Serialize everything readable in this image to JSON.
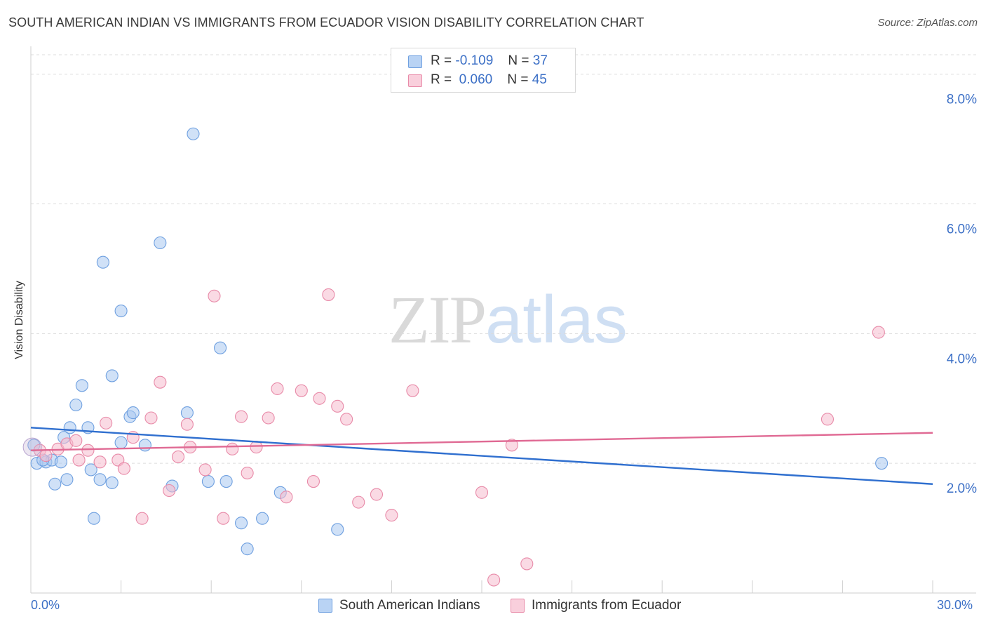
{
  "header": {
    "title": "SOUTH AMERICAN INDIAN VS IMMIGRANTS FROM ECUADOR VISION DISABILITY CORRELATION CHART",
    "source": "Source: ZipAtlas.com"
  },
  "watermark": {
    "part1": "ZIP",
    "part2": "atlas"
  },
  "legend": {
    "rows": [
      {
        "r_label": "R =",
        "r_value": "-0.109",
        "n_label": "N =",
        "n_value": "37",
        "color": "#a9c8f0"
      },
      {
        "r_label": "R =",
        "r_value": "0.060",
        "n_label": "N =",
        "n_value": "45",
        "color": "#f6bccd"
      }
    ]
  },
  "bottom_legend": [
    {
      "label": "South American Indians",
      "color": "#a9c8f0"
    },
    {
      "label": "Immigrants from Ecuador",
      "color": "#f6bccd"
    }
  ],
  "chart_data": {
    "type": "scatter",
    "title": "SOUTH AMERICAN INDIAN VS IMMIGRANTS FROM ECUADOR VISION DISABILITY CORRELATION CHART",
    "xlabel": "",
    "ylabel": "Vision Disability",
    "xlim": [
      0,
      30
    ],
    "ylim": [
      0,
      8.3
    ],
    "x_tick_labels": [
      "0.0%",
      "30.0%"
    ],
    "y_ticks": [
      2,
      4,
      6,
      8
    ],
    "y_tick_labels": [
      "2.0%",
      "4.0%",
      "6.0%",
      "8.0%"
    ],
    "grid": "horizontal dashed",
    "legend_position": "top-center",
    "series": [
      {
        "name": "South American Indians",
        "color": "#6fa0e0",
        "fill": "#a9c8f0",
        "trend": {
          "x": [
            0,
            30
          ],
          "y": [
            2.55,
            1.68
          ]
        },
        "points": [
          [
            0.2,
            2.0
          ],
          [
            0.5,
            2.02
          ],
          [
            0.7,
            2.05
          ],
          [
            1.0,
            2.02
          ],
          [
            0.8,
            1.68
          ],
          [
            1.2,
            1.75
          ],
          [
            1.1,
            2.4
          ],
          [
            1.3,
            2.55
          ],
          [
            1.5,
            2.9
          ],
          [
            1.7,
            3.2
          ],
          [
            1.9,
            2.55
          ],
          [
            2.0,
            1.9
          ],
          [
            2.1,
            1.15
          ],
          [
            2.3,
            1.75
          ],
          [
            2.4,
            5.1
          ],
          [
            2.7,
            1.7
          ],
          [
            2.7,
            3.35
          ],
          [
            3.0,
            4.35
          ],
          [
            3.0,
            2.32
          ],
          [
            3.3,
            2.72
          ],
          [
            3.4,
            2.78
          ],
          [
            3.8,
            2.28
          ],
          [
            4.3,
            5.4
          ],
          [
            4.7,
            1.65
          ],
          [
            5.2,
            2.78
          ],
          [
            5.4,
            7.08
          ],
          [
            5.9,
            1.72
          ],
          [
            6.3,
            3.78
          ],
          [
            6.5,
            1.72
          ],
          [
            7.0,
            1.08
          ],
          [
            7.2,
            0.68
          ],
          [
            7.7,
            1.15
          ],
          [
            8.3,
            1.55
          ],
          [
            10.2,
            0.98
          ],
          [
            28.3,
            2.0
          ],
          [
            0.1,
            2.28
          ],
          [
            0.4,
            2.05
          ]
        ]
      },
      {
        "name": "Immigrants from Ecuador",
        "color": "#e88aa8",
        "fill": "#f6bccd",
        "trend": {
          "x": [
            0,
            30
          ],
          "y": [
            2.2,
            2.47
          ]
        },
        "points": [
          [
            0.3,
            2.2
          ],
          [
            0.5,
            2.12
          ],
          [
            0.9,
            2.22
          ],
          [
            1.2,
            2.3
          ],
          [
            1.5,
            2.35
          ],
          [
            1.6,
            2.05
          ],
          [
            1.9,
            2.2
          ],
          [
            2.3,
            2.02
          ],
          [
            2.5,
            2.62
          ],
          [
            2.9,
            2.05
          ],
          [
            3.1,
            1.92
          ],
          [
            3.4,
            2.4
          ],
          [
            3.7,
            1.15
          ],
          [
            4.0,
            2.7
          ],
          [
            4.3,
            3.25
          ],
          [
            4.6,
            1.58
          ],
          [
            4.9,
            2.1
          ],
          [
            5.2,
            2.6
          ],
          [
            5.3,
            2.25
          ],
          [
            5.8,
            1.9
          ],
          [
            6.1,
            4.58
          ],
          [
            6.4,
            1.15
          ],
          [
            6.7,
            2.22
          ],
          [
            7.0,
            2.72
          ],
          [
            7.2,
            1.85
          ],
          [
            7.5,
            2.25
          ],
          [
            7.9,
            2.7
          ],
          [
            8.2,
            3.15
          ],
          [
            8.5,
            1.48
          ],
          [
            9.0,
            3.12
          ],
          [
            9.4,
            1.72
          ],
          [
            9.6,
            3.0
          ],
          [
            9.9,
            4.6
          ],
          [
            10.2,
            2.88
          ],
          [
            10.5,
            2.68
          ],
          [
            10.9,
            1.4
          ],
          [
            11.5,
            1.52
          ],
          [
            12.0,
            1.2
          ],
          [
            12.7,
            3.12
          ],
          [
            15.0,
            1.55
          ],
          [
            15.4,
            0.2
          ],
          [
            16.0,
            2.28
          ],
          [
            16.5,
            0.45
          ],
          [
            26.5,
            2.68
          ],
          [
            28.2,
            4.02
          ]
        ]
      }
    ]
  }
}
